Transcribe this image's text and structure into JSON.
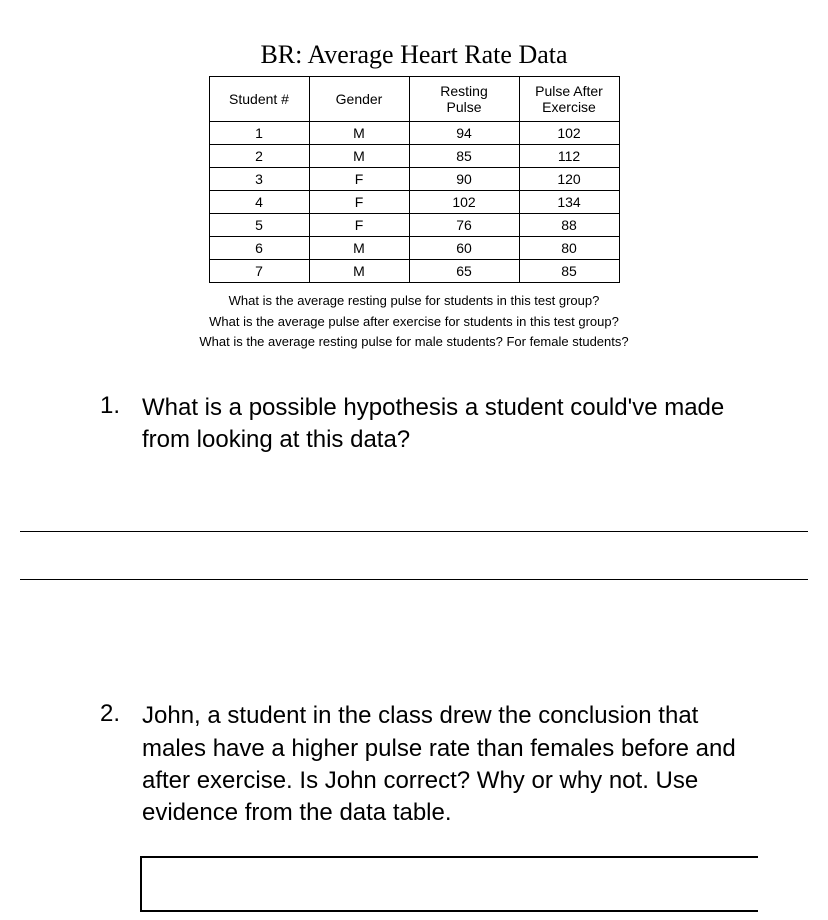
{
  "title": "BR: Average Heart Rate Data",
  "table": {
    "columns": [
      "Student #",
      "Gender",
      "Resting Pulse",
      "Pulse After Exercise"
    ],
    "rows": [
      [
        "1",
        "M",
        "94",
        "102"
      ],
      [
        "2",
        "M",
        "85",
        "112"
      ],
      [
        "3",
        "F",
        "90",
        "120"
      ],
      [
        "4",
        "F",
        "102",
        "134"
      ],
      [
        "5",
        "F",
        "76",
        "88"
      ],
      [
        "6",
        "M",
        "60",
        "80"
      ],
      [
        "7",
        "M",
        "65",
        "85"
      ]
    ]
  },
  "sub_questions": {
    "q1": "What is the average resting pulse for students in this test group?",
    "q2": "What is the average pulse after exercise for students in this test group?",
    "q3": "What is the average resting pulse for male students? For female students?"
  },
  "questions": {
    "q1": {
      "number": "1.",
      "text": "What is a possible hypothesis a student could've made from looking at this data?"
    },
    "q2": {
      "number": "2.",
      "text": "John, a student in the class drew the conclusion that males have a higher pulse rate than females before and after exercise.  Is John correct?  Why or why not. Use evidence from the data table."
    }
  },
  "colors": {
    "text": "#000000",
    "background": "#ffffff",
    "border": "#000000"
  }
}
